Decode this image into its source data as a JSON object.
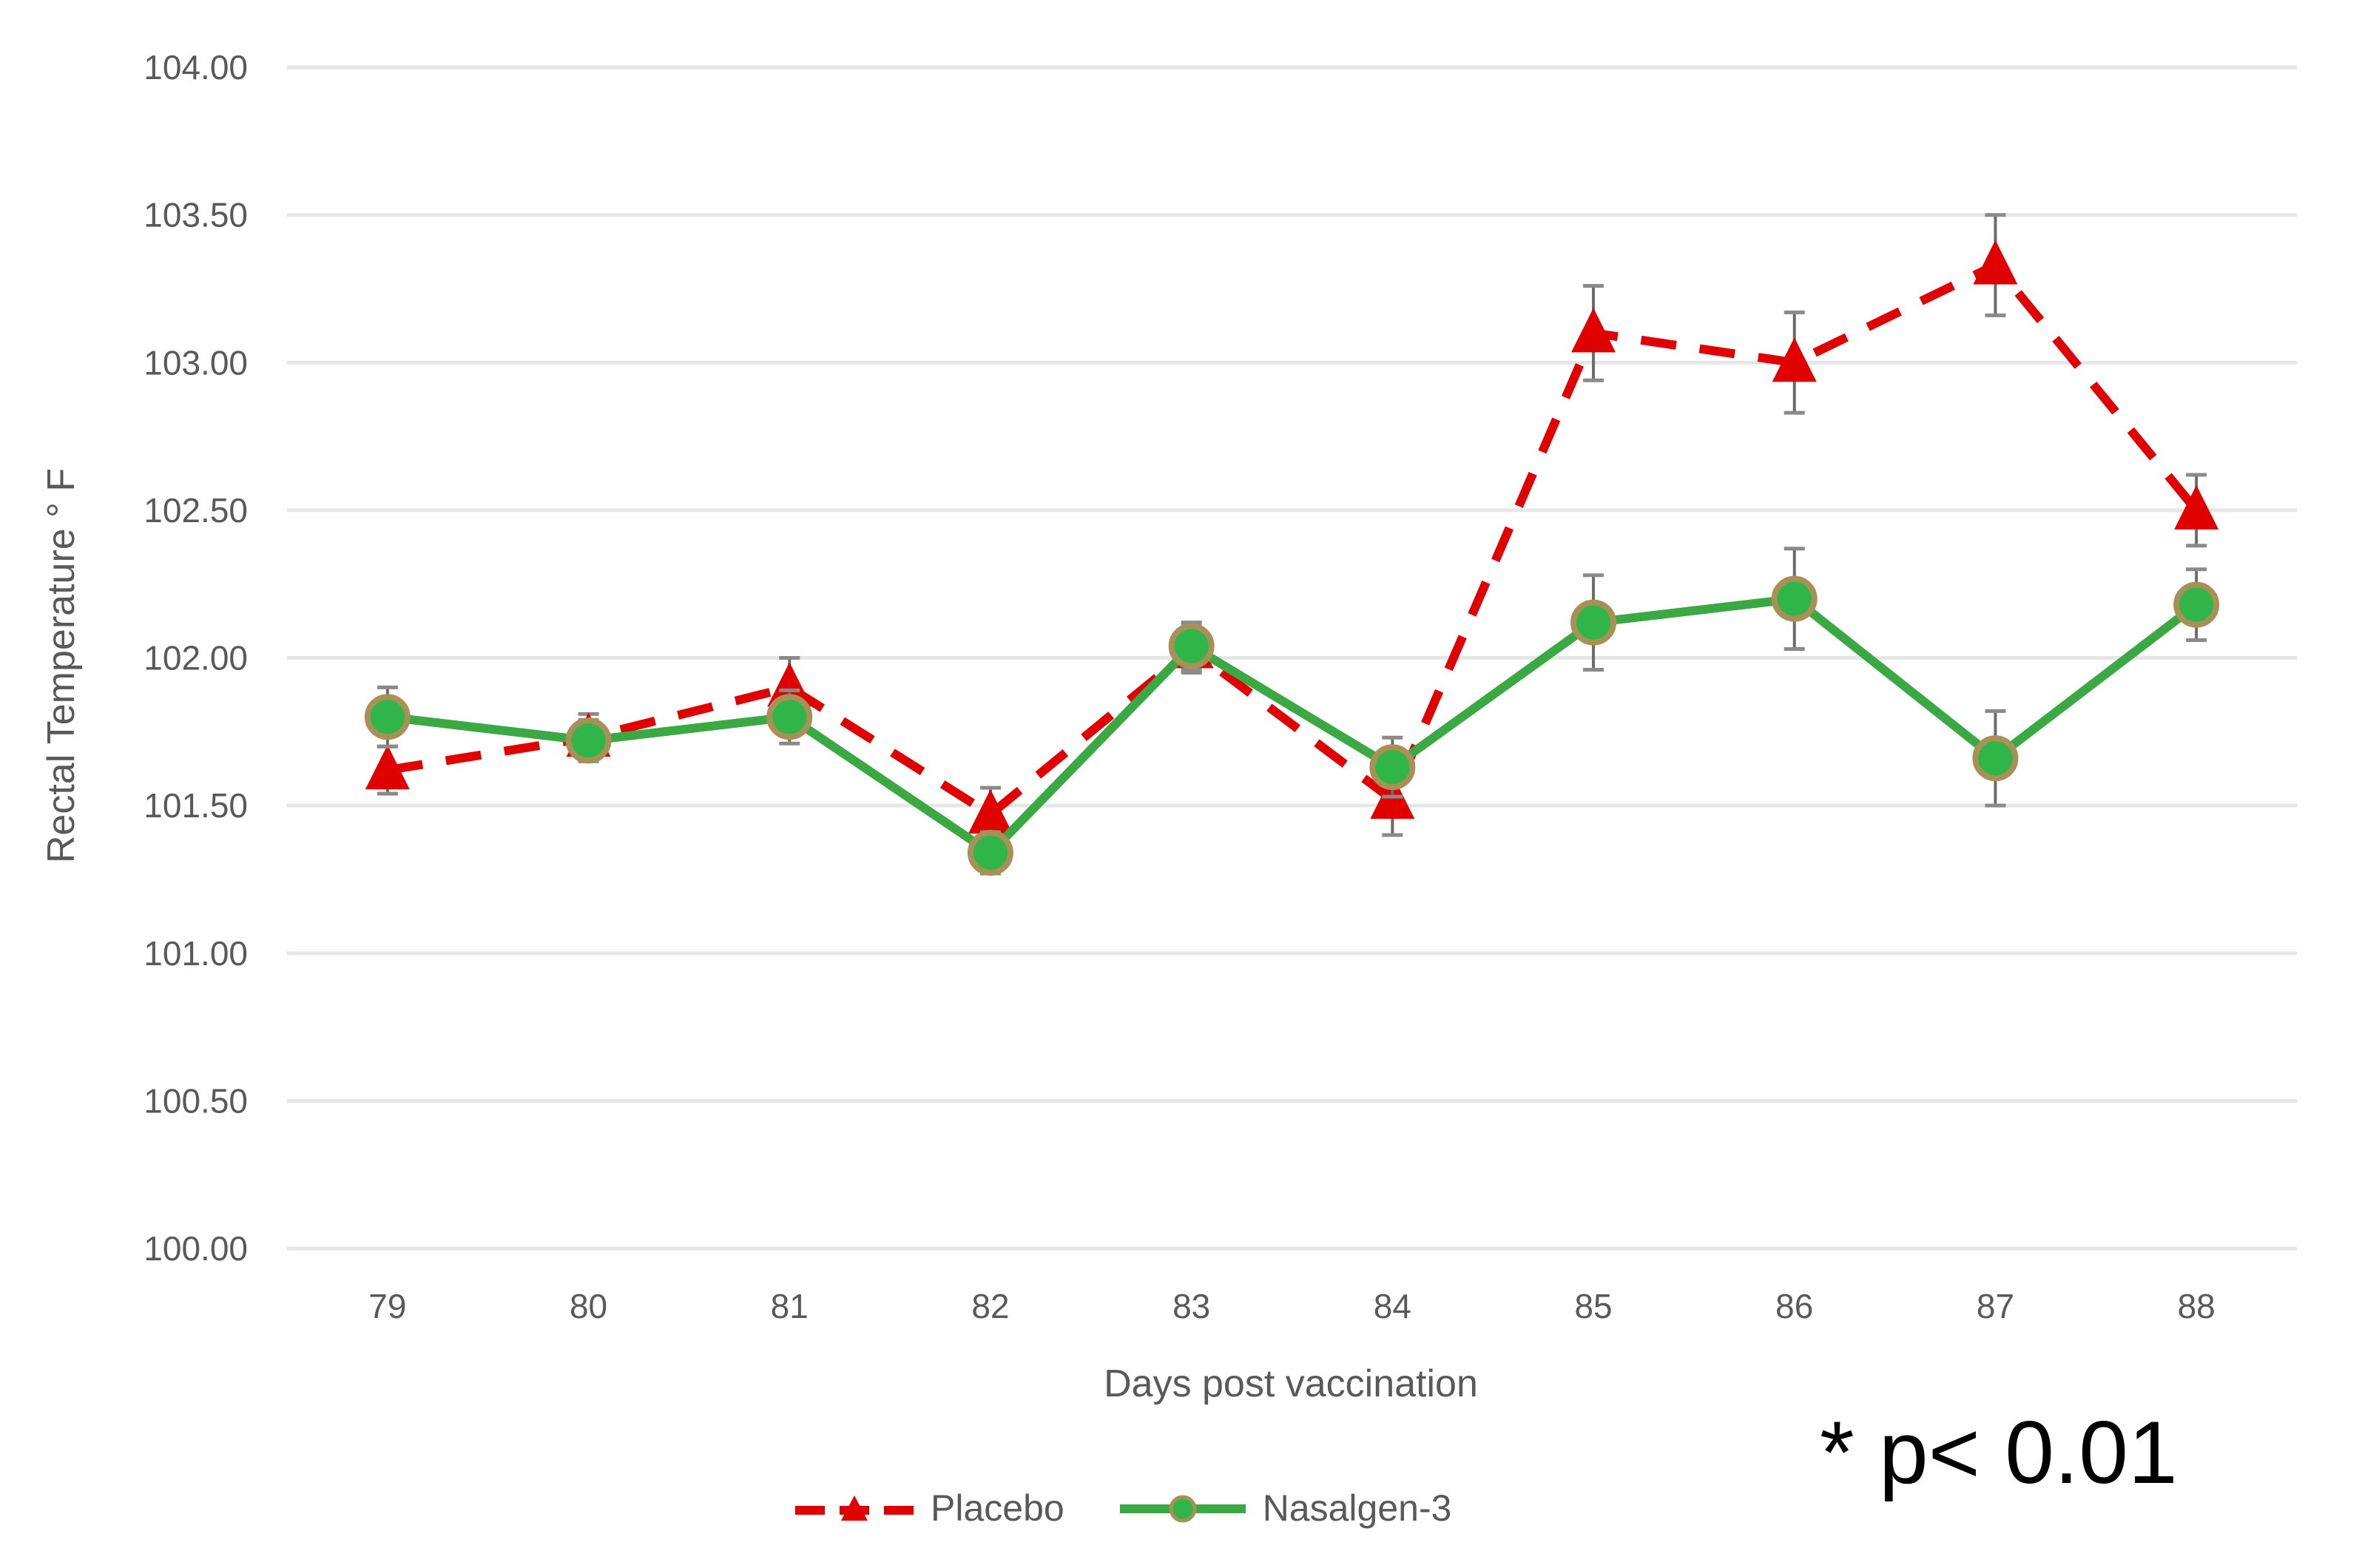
{
  "chart_data": {
    "type": "line",
    "title": "",
    "xlabel": "Days post vaccination",
    "ylabel": "Rectal Temperature ° F",
    "x": [
      79,
      80,
      81,
      82,
      83,
      84,
      85,
      86,
      87,
      88
    ],
    "ylim": [
      100.0,
      104.0
    ],
    "yticks": [
      "100.00",
      "100.50",
      "101.00",
      "101.50",
      "102.00",
      "102.50",
      "103.00",
      "103.50",
      "104.00"
    ],
    "grid": true,
    "legend_position": "bottom",
    "series": [
      {
        "name": "Placebo",
        "color": "#e00000",
        "line_style": "dashed",
        "marker": "triangle",
        "values": [
          101.62,
          101.73,
          101.9,
          101.47,
          102.03,
          101.52,
          103.1,
          103.0,
          103.33,
          102.5
        ],
        "error": [
          0.08,
          0.08,
          0.1,
          0.09,
          0.08,
          0.12,
          0.16,
          0.17,
          0.17,
          0.12
        ]
      },
      {
        "name": "Nasalgen-3",
        "color": "#3aa843",
        "line_style": "solid",
        "marker": "circle",
        "values": [
          101.8,
          101.72,
          101.8,
          101.34,
          102.04,
          101.63,
          102.12,
          102.2,
          101.66,
          102.18
        ],
        "error": [
          0.1,
          0.07,
          0.09,
          0.07,
          0.08,
          0.1,
          0.16,
          0.17,
          0.16,
          0.12
        ]
      }
    ],
    "annotations": [
      "* p< 0.01"
    ]
  },
  "legend": {
    "placebo_label": "Placebo",
    "nasalgen_label": "Nasalgen-3"
  },
  "annotation_text": "* p< 0.01"
}
